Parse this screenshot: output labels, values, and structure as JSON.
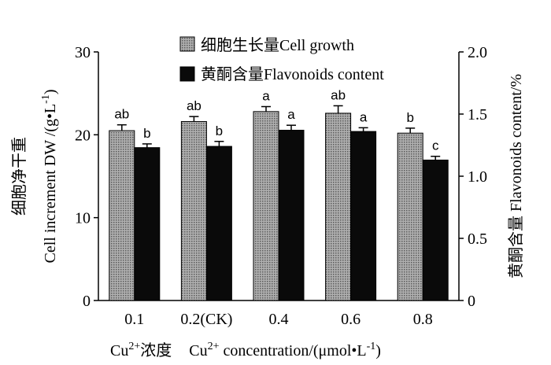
{
  "chart_data": {
    "type": "bar",
    "categories": [
      "0.1",
      "0.2(CK)",
      "0.4",
      "0.6",
      "0.8"
    ],
    "series": [
      {
        "name": "细胞生长量Cell growth",
        "axis": "left",
        "values": [
          20.5,
          21.6,
          22.8,
          22.6,
          20.2
        ],
        "errors": [
          0.7,
          0.6,
          0.6,
          0.9,
          0.6
        ],
        "labels": [
          "ab",
          "ab",
          "a",
          "ab",
          "b"
        ],
        "fill": "#9e9e9e",
        "pattern": "dotted-grey"
      },
      {
        "name": "黄酮含量Flavonoids content",
        "axis": "right",
        "values": [
          1.23,
          1.24,
          1.37,
          1.36,
          1.13
        ],
        "errors": [
          0.03,
          0.04,
          0.04,
          0.03,
          0.03
        ],
        "labels": [
          "b",
          "b",
          "a",
          "a",
          "c"
        ],
        "fill": "#0a0a0a"
      }
    ],
    "y_left": {
      "label_line1": "细胞净干重",
      "label_line2": "Cell increment DW /(g•L",
      "label_sup": "-1",
      "label_end": ")",
      "ylim": [
        0,
        30
      ],
      "ticks": [
        "0",
        "10",
        "20",
        "30"
      ]
    },
    "y_right": {
      "label_cn": "黄酮含量",
      "label_en": " Flavonoids content/%",
      "ylim": [
        0,
        2.0
      ],
      "ticks": [
        "0",
        "0.5",
        "1.0",
        "1.5",
        "2.0"
      ]
    },
    "xlabel": {
      "cn_prefix": "Cu",
      "cn_sup": "2+",
      "cn_text": "浓度",
      "en_prefix": "Cu",
      "en_sup": "2+",
      "en_text": " concentration/(μmol•L",
      "en_sup2": "-1",
      "en_end": ")"
    },
    "legend_position": "top-center",
    "grid": false
  }
}
